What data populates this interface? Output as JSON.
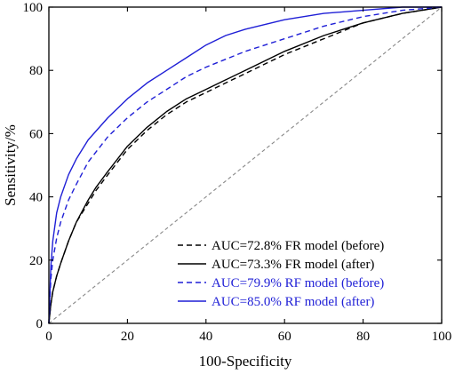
{
  "chart_data": {
    "type": "line",
    "title": "",
    "xlabel": "100-Specificity",
    "ylabel": "Sensitivity/%",
    "xlim": [
      0,
      100
    ],
    "ylim": [
      0,
      100
    ],
    "xticks": [
      0,
      20,
      40,
      60,
      80,
      100
    ],
    "yticks": [
      0,
      20,
      40,
      60,
      80,
      100
    ],
    "grid": false,
    "legend_position": "bottom-right",
    "reference_line": {
      "color": "#888888",
      "style": "dashed",
      "from": [
        0,
        0
      ],
      "to": [
        100,
        100
      ]
    },
    "series": [
      {
        "name": "AUC=72.8% FR model (before)",
        "color": "#000000",
        "style": "dashed",
        "x": [
          0,
          0.5,
          1,
          2,
          3,
          5,
          7,
          10,
          12,
          15,
          20,
          25,
          30,
          35,
          40,
          45,
          50,
          60,
          70,
          80,
          90,
          100
        ],
        "y": [
          0,
          6,
          10,
          15,
          19,
          26,
          32,
          38,
          42,
          47,
          55,
          61,
          66,
          70,
          73,
          76,
          79,
          85,
          90,
          95,
          98,
          100
        ]
      },
      {
        "name": "AUC=73.3% FR model (after)",
        "color": "#000000",
        "style": "solid",
        "x": [
          0,
          0.5,
          1,
          2,
          3,
          5,
          7,
          10,
          12,
          15,
          20,
          25,
          30,
          35,
          40,
          45,
          50,
          60,
          70,
          80,
          90,
          100
        ],
        "y": [
          0,
          6,
          10,
          15,
          19,
          26,
          32,
          39,
          43,
          48,
          56,
          62,
          67,
          71,
          74,
          77,
          80,
          86,
          91,
          95,
          98,
          100
        ]
      },
      {
        "name": "AUC=79.9% RF model (before)",
        "color": "#1f1fd6",
        "style": "dashed",
        "x": [
          0,
          0.5,
          1,
          2,
          3,
          5,
          7,
          10,
          15,
          20,
          25,
          30,
          35,
          40,
          50,
          60,
          70,
          80,
          90,
          100
        ],
        "y": [
          0,
          14,
          20,
          27,
          32,
          39,
          44,
          51,
          59,
          65,
          70,
          74,
          78,
          81,
          86,
          90,
          94,
          97,
          99,
          100
        ]
      },
      {
        "name": "AUC=85.0% RF model (after)",
        "color": "#1f1fd6",
        "style": "solid",
        "x": [
          0,
          0.5,
          1,
          2,
          3,
          5,
          7,
          10,
          15,
          20,
          25,
          30,
          35,
          40,
          45,
          50,
          60,
          70,
          80,
          90,
          100
        ],
        "y": [
          0,
          18,
          26,
          35,
          40,
          47,
          52,
          58,
          65,
          71,
          76,
          80,
          84,
          88,
          91,
          93,
          96,
          98,
          99,
          100,
          100
        ]
      }
    ]
  }
}
